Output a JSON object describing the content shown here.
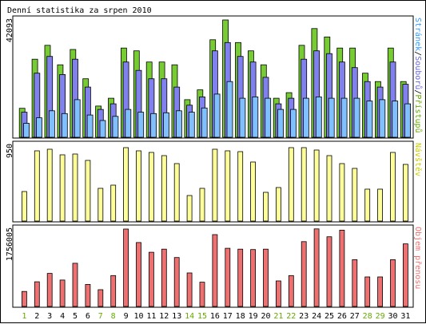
{
  "chart_data": {
    "type": "bar",
    "title": "Denní statistika za srpen 2010",
    "categories": [
      "1",
      "2",
      "3",
      "4",
      "5",
      "6",
      "7",
      "8",
      "9",
      "10",
      "11",
      "12",
      "13",
      "14",
      "15",
      "16",
      "17",
      "18",
      "19",
      "20",
      "21",
      "22",
      "23",
      "24",
      "25",
      "26",
      "27",
      "28",
      "29",
      "30",
      "31"
    ],
    "weekend_days": [
      "1",
      "7",
      "8",
      "14",
      "15",
      "21",
      "22",
      "28",
      "29"
    ],
    "colors": {
      "weekday_label": "#000000",
      "weekend_label": "#66aa00",
      "access": "#77cc33",
      "files": "#8080ee",
      "pages": "#80c0ff",
      "visits": "#ffff99",
      "volume": "#ee7070"
    },
    "panels": [
      {
        "id": "hits",
        "ymax_label": "42093",
        "ylim": [
          0,
          42093
        ],
        "right_label_parts": [
          {
            "text": "Stránek",
            "color": "#3399ff"
          },
          {
            "text": "/",
            "color": "#000000"
          },
          {
            "text": "Souborů",
            "color": "#6666dd"
          },
          {
            "text": "/",
            "color": "#000000"
          },
          {
            "text": "Přístupů",
            "color": "#66aa00"
          }
        ],
        "series": [
          {
            "name": "Přístupů",
            "color": "#77cc33",
            "values": [
              10400,
              28000,
              33000,
              26000,
              31500,
              21000,
              11200,
              14000,
              32000,
              31000,
              27000,
              27000,
              26000,
              13500,
              17000,
              35000,
              42093,
              34000,
              31000,
              26000,
              14000,
              16000,
              33000,
              39000,
              36000,
              32000,
              32000,
              23000,
              20000,
              32000,
              20000
            ]
          },
          {
            "name": "Souborů",
            "color": "#8080ee",
            "values": [
              9000,
              23000,
              29000,
              22500,
              28000,
              18000,
              10000,
              12000,
              27000,
              24000,
              21000,
              21000,
              18000,
              11500,
              14500,
              31000,
              34000,
              29000,
              27000,
              21500,
              12000,
              14000,
              28000,
              31000,
              30000,
              27000,
              25000,
              20000,
              18000,
              27000,
              19000
            ]
          },
          {
            "name": "Stránek",
            "color": "#80c0ff",
            "values": [
              5000,
              7000,
              9500,
              8500,
              13500,
              8000,
              6000,
              7500,
              10000,
              9000,
              8500,
              8800,
              9500,
              9000,
              10500,
              15500,
              20000,
              14000,
              14500,
              14000,
              10000,
              10000,
              14000,
              14500,
              14000,
              14000,
              14000,
              13000,
              13500,
              13000,
              12000
            ]
          }
        ]
      },
      {
        "id": "visits",
        "ymax_label": "950",
        "ylim": [
          0,
          950
        ],
        "right_label_parts": [
          {
            "text": "Návštěv",
            "color": "#cccc00"
          }
        ],
        "series": [
          {
            "name": "Návštěv",
            "color": "#ffff99",
            "values": [
              370,
              880,
              900,
              830,
              840,
              760,
              410,
              450,
              920,
              880,
              860,
              820,
              720,
              320,
              410,
              900,
              880,
              870,
              740,
              360,
              420,
              920,
              920,
              890,
              820,
              720,
              660,
              400,
              400,
              860,
              710
            ]
          }
        ]
      },
      {
        "id": "volume",
        "ymax_label": "1756005",
        "ylim": [
          0,
          1756005
        ],
        "right_label_parts": [
          {
            "text": "Objem přenosu",
            "color": "#ee7070"
          }
        ],
        "series": [
          {
            "name": "Objem přenosu",
            "color": "#ee7070",
            "values": [
              340000,
              560000,
              750000,
              600000,
              980000,
              500000,
              380000,
              700000,
              1756005,
              1450000,
              1230000,
              1300000,
              1110000,
              760000,
              550000,
              1630000,
              1320000,
              1300000,
              1290000,
              1300000,
              580000,
              700000,
              1470000,
              1760000,
              1580000,
              1730000,
              1060000,
              670000,
              670000,
              1060000,
              1420000
            ]
          }
        ]
      }
    ]
  }
}
